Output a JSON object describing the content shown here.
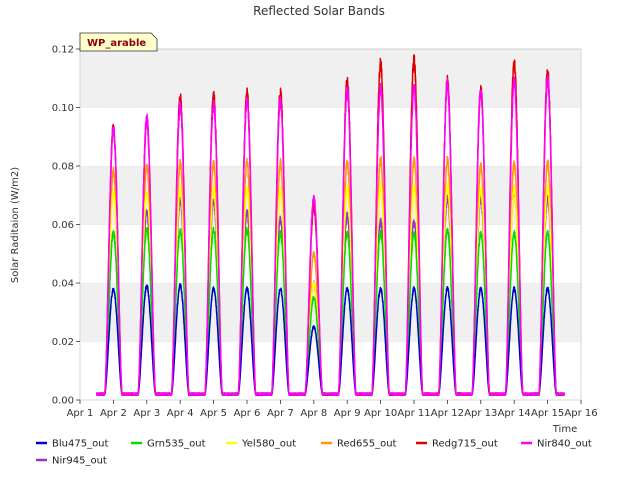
{
  "chart_data": {
    "type": "line",
    "title": "Reflected Solar Bands",
    "xlabel": "Time",
    "ylabel": "Solar Raditaion (W/m2)",
    "ylim": [
      0.0,
      0.12
    ],
    "xlim": [
      0,
      15
    ],
    "grid": "horizontal bands",
    "legend_position": "bottom",
    "y_ticks": [
      "0.00",
      "0.02",
      "0.04",
      "0.06",
      "0.08",
      "0.10",
      "0.12"
    ],
    "y_tick_values": [
      0.0,
      0.02,
      0.04,
      0.06,
      0.08,
      0.1,
      0.12
    ],
    "x_ticks": [
      "Apr 1",
      "Apr 2",
      "Apr 3",
      "Apr 4",
      "Apr 5",
      "Apr 6",
      "Apr 7",
      "Apr 8",
      "Apr 9",
      "Apr 10",
      "Apr 11",
      "Apr 12",
      "Apr 13",
      "Apr 14",
      "Apr 15",
      "Apr 16"
    ],
    "x_tick_values": [
      0,
      1,
      2,
      3,
      4,
      5,
      6,
      7,
      8,
      9,
      10,
      11,
      12,
      13,
      14,
      15
    ],
    "annotation": "WP_arable",
    "night_baseline": 0.002,
    "day_centers": [
      1,
      2,
      3,
      4,
      5,
      6,
      7,
      8,
      9,
      10,
      11,
      12,
      13,
      14
    ],
    "series": [
      {
        "name": "Blu475_out",
        "color": "#0000cc",
        "daily_peaks": [
          0.038,
          0.039,
          0.039,
          0.038,
          0.038,
          0.038,
          0.025,
          0.038,
          0.038,
          0.038,
          0.038,
          0.038,
          0.038,
          0.038
        ]
      },
      {
        "name": "Grn535_out",
        "color": "#00dd00",
        "daily_peaks": [
          0.057,
          0.058,
          0.058,
          0.058,
          0.058,
          0.057,
          0.035,
          0.057,
          0.057,
          0.057,
          0.058,
          0.057,
          0.057,
          0.057
        ]
      },
      {
        "name": "Yel580_out",
        "color": "#ffff00",
        "daily_peaks": [
          0.071,
          0.071,
          0.072,
          0.072,
          0.072,
          0.072,
          0.04,
          0.072,
          0.073,
          0.073,
          0.073,
          0.072,
          0.072,
          0.072
        ]
      },
      {
        "name": "Red655_out",
        "color": "#ff9900",
        "daily_peaks": [
          0.078,
          0.08,
          0.081,
          0.081,
          0.081,
          0.081,
          0.05,
          0.081,
          0.082,
          0.082,
          0.082,
          0.08,
          0.081,
          0.081
        ]
      },
      {
        "name": "Redg715_out",
        "color": "#dd0000",
        "daily_peaks": [
          0.093,
          0.096,
          0.104,
          0.104,
          0.105,
          0.105,
          0.066,
          0.109,
          0.115,
          0.116,
          0.109,
          0.106,
          0.115,
          0.112
        ]
      },
      {
        "name": "Nir840_out",
        "color": "#ff00ff",
        "daily_peaks": [
          0.093,
          0.096,
          0.101,
          0.101,
          0.102,
          0.102,
          0.069,
          0.106,
          0.107,
          0.107,
          0.108,
          0.106,
          0.109,
          0.109
        ]
      },
      {
        "name": "Nir945_out",
        "color": "#9933cc",
        "daily_peaks": [
          0.057,
          0.064,
          0.068,
          0.068,
          0.064,
          0.062,
          0.04,
          0.063,
          0.061,
          0.061,
          0.069,
          0.069,
          0.072,
          0.069
        ]
      }
    ]
  }
}
